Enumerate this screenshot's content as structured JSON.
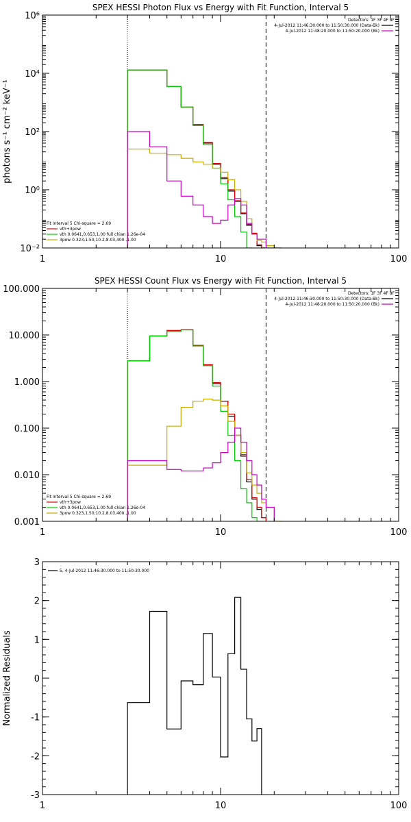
{
  "chart_data": [
    {
      "type": "line",
      "title": "SPEX HESSI Photon Flux vs Energy with Fit Function, Interval 5",
      "xlabel": "",
      "ylabel": "photons s⁻¹ cm⁻² keV⁻¹",
      "xscale": "log",
      "yscale": "log",
      "xlim": [
        1,
        100
      ],
      "ylim": [
        0.01,
        1000000
      ],
      "x_ticks": [
        {
          "value": 1,
          "label": "1"
        },
        {
          "value": 10,
          "label": "10"
        },
        {
          "value": 100,
          "label": "100"
        }
      ],
      "y_ticks": [
        {
          "value": 0.01,
          "label": "10⁻²"
        },
        {
          "value": 1,
          "label": "10⁰"
        },
        {
          "value": 100,
          "label": "10²"
        },
        {
          "value": 10000,
          "label": "10⁴"
        },
        {
          "value": 1000000,
          "label": "10⁶"
        }
      ],
      "vlines": [
        {
          "x": 3.0,
          "style": "dotted"
        },
        {
          "x": 18.0,
          "style": "dashed"
        }
      ],
      "legend_top_right": {
        "header": "Detectors: 1F 3F 4F 8F",
        "entries": [
          {
            "text": "4-Jul-2012 11:46:30.000 to 11:50:30.000 (Data-Bk)",
            "color": "#000000"
          },
          {
            "text": "4-Jul-2012 11:48:20.000 to 11:50:20.000 (Bk)",
            "color": "#cc00cc"
          }
        ]
      },
      "legend_bottom_left": {
        "header": "Fit Interval 5   Chi-square = 2.69",
        "entries": [
          {
            "text": "vth+3pow",
            "color": "#dd0000"
          },
          {
            "text": "vth 0.0641,0.653,1.00  full chian 1.26e-04",
            "color": "#00cc00"
          },
          {
            "text": "3pow 0.323,1.50,10.2,8.03,400.,1.00",
            "color": "#ccaa00"
          }
        ]
      },
      "bin_edges": [
        3.0,
        4.0,
        5.0,
        6.0,
        7.0,
        8.0,
        9.0,
        10.0,
        11.0,
        12.0,
        13.0,
        14.0,
        15.0,
        16.0,
        17.0,
        18.0,
        20.0,
        22.0
      ],
      "series": [
        {
          "color": "#000000",
          "values": [
            13000,
            13000,
            3500,
            700,
            170,
            40,
            7.5,
            2.4,
            0.9,
            0.4,
            0.15,
            0.06,
            0.03,
            0.012,
            0.005,
            null,
            null
          ]
        },
        {
          "color": "#dd0000",
          "values": [
            13000,
            13000,
            3500,
            700,
            175,
            42,
            8,
            2.6,
            1.0,
            0.42,
            0.16,
            0.065,
            0.032,
            0.013,
            0.0055,
            null,
            null
          ]
        },
        {
          "color": "#00cc00",
          "values": [
            13000,
            13000,
            3500,
            700,
            160,
            35,
            5.5,
            1.6,
            0.45,
            0.12,
            0.035,
            0.009,
            null,
            null,
            null,
            null,
            null
          ]
        },
        {
          "color": "#ccaa00",
          "values": [
            25,
            18,
            16,
            12,
            9,
            7.5,
            5.5,
            4,
            2.2,
            1.0,
            0.4,
            0.1,
            0.03,
            0.018,
            0.016,
            0.012,
            0.005
          ]
        },
        {
          "color": "#cc00cc",
          "values": [
            100,
            30,
            2,
            0.6,
            0.3,
            0.12,
            0.07,
            0.09,
            0.3,
            0.5,
            0.3,
            0.07,
            0.03,
            0.02,
            0.02,
            0.01,
            0.008
          ]
        }
      ]
    },
    {
      "type": "line",
      "title": "SPEX HESSI Count Flux vs Energy with Fit Function, Interval 5",
      "xlabel": "",
      "ylabel": "",
      "xscale": "log",
      "yscale": "log",
      "xlim": [
        1,
        100
      ],
      "ylim": [
        0.001,
        100
      ],
      "x_ticks": [
        {
          "value": 1,
          "label": "1"
        },
        {
          "value": 10,
          "label": "10"
        },
        {
          "value": 100,
          "label": "100"
        }
      ],
      "y_ticks": [
        {
          "value": 0.001,
          "label": "0.001"
        },
        {
          "value": 0.01,
          "label": "0.010"
        },
        {
          "value": 0.1,
          "label": "0.100"
        },
        {
          "value": 1,
          "label": "1.000"
        },
        {
          "value": 10,
          "label": "10.000"
        },
        {
          "value": 100,
          "label": "100.000"
        }
      ],
      "vlines": [
        {
          "x": 3.0,
          "style": "dotted"
        },
        {
          "x": 18.0,
          "style": "dashed"
        }
      ],
      "legend_top_right": {
        "header": "Detectors: 1F 3F 4F 8F",
        "entries": [
          {
            "text": "4-Jul-2012 11:46:30.000 to 11:50:30.000 (Data-Bk)",
            "color": "#000000"
          },
          {
            "text": "4-Jul-2012 11:48:20.000 to 11:50:20.000 (Bk)",
            "color": "#cc00cc"
          }
        ]
      },
      "legend_bottom_left": {
        "header": "Fit Interval 5   Chi-square = 2.69",
        "entries": [
          {
            "text": "vth+3pow",
            "color": "#dd0000"
          },
          {
            "text": "vth 0.0641,0.653,1.00  full chian 1.26e-04",
            "color": "#00cc00"
          },
          {
            "text": "3pow 0.323,1.50,10.2,8.03,400.,1.00",
            "color": "#ccaa00"
          }
        ]
      },
      "bin_edges": [
        3.0,
        4.0,
        5.0,
        6.0,
        7.0,
        8.0,
        9.0,
        10.0,
        11.0,
        12.0,
        13.0,
        14.0,
        15.0,
        16.0,
        17.0,
        18.0,
        20.0,
        22.0
      ],
      "series": [
        {
          "color": "#000000",
          "values": [
            2.8,
            9.5,
            12,
            13,
            6,
            2.2,
            0.9,
            0.38,
            0.18,
            0.07,
            0.025,
            0.007,
            0.003,
            0.0018,
            0.0012,
            null,
            null
          ]
        },
        {
          "color": "#dd0000",
          "values": [
            2.8,
            9.5,
            12.5,
            13,
            6,
            2.3,
            0.95,
            0.38,
            0.2,
            0.07,
            0.027,
            0.008,
            0.0032,
            0.002,
            0.0012,
            null,
            null
          ]
        },
        {
          "color": "#00cc00",
          "values": [
            2.8,
            9.5,
            12,
            12.8,
            5.8,
            2.2,
            0.8,
            0.23,
            0.07,
            0.02,
            0.005,
            0.0025,
            0.0012,
            null,
            null,
            null,
            null
          ]
        },
        {
          "color": "#ccaa00",
          "values": [
            0.016,
            0.016,
            0.11,
            0.28,
            0.38,
            0.42,
            0.4,
            0.3,
            0.14,
            0.07,
            0.03,
            0.011,
            0.006,
            0.004,
            0.0025,
            0.002,
            0.001
          ]
        },
        {
          "color": "#cc00cc",
          "values": [
            0.02,
            0.02,
            0.013,
            0.012,
            0.012,
            0.014,
            0.018,
            0.03,
            0.05,
            0.1,
            0.05,
            0.02,
            0.01,
            0.006,
            0.003,
            0.002,
            null
          ]
        }
      ]
    },
    {
      "type": "line",
      "title": "",
      "xlabel": "",
      "ylabel": "Normalized Residuals",
      "xscale": "log",
      "yscale": "linear",
      "xlim": [
        1,
        100
      ],
      "ylim": [
        -3,
        3
      ],
      "x_ticks": [
        {
          "value": 1,
          "label": "1"
        },
        {
          "value": 10,
          "label": "10"
        },
        {
          "value": 100,
          "label": "100"
        }
      ],
      "y_ticks": [
        {
          "value": -3,
          "label": "-3"
        },
        {
          "value": -2,
          "label": "-2"
        },
        {
          "value": -1,
          "label": "-1"
        },
        {
          "value": 0,
          "label": "0"
        },
        {
          "value": 1,
          "label": "1"
        },
        {
          "value": 2,
          "label": "2"
        },
        {
          "value": 3,
          "label": "3"
        }
      ],
      "legend_top_left": {
        "entries": [
          {
            "text": "5, 4-Jul-2012 11:46:30.000 to 11:50:30.000",
            "color": "#000000"
          }
        ]
      },
      "bin_edges": [
        3.0,
        4.0,
        5.0,
        6.0,
        7.0,
        8.0,
        9.0,
        10.0,
        11.0,
        12.0,
        13.0,
        14.0,
        15.0,
        16.0,
        17.0,
        18.0
      ],
      "series": [
        {
          "color": "#000000",
          "values": [
            -0.63,
            1.72,
            -1.31,
            -0.07,
            -0.17,
            1.15,
            0.03,
            -2.03,
            0.63,
            2.08,
            0.23,
            -1.05,
            -1.62,
            -1.3
          ]
        }
      ]
    }
  ]
}
